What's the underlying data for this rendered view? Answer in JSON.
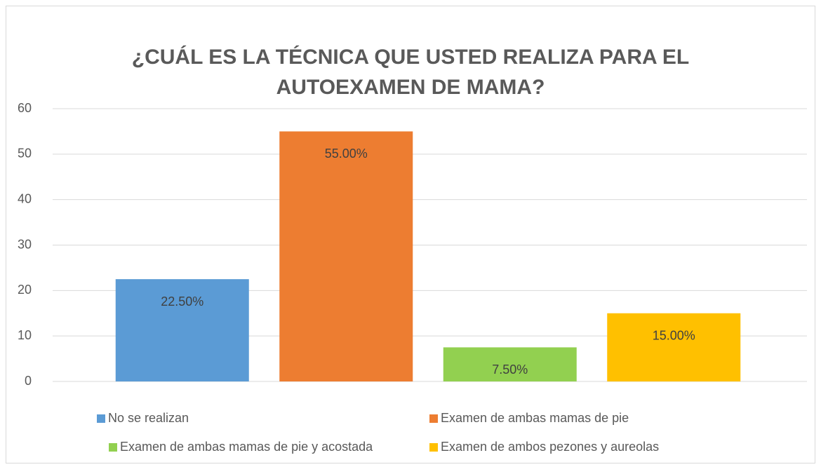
{
  "chart_data": {
    "type": "bar",
    "title": "¿CUÁL ES LA TÉCNICA QUE USTED REALIZA PARA EL AUTOEXAMEN DE MAMA?",
    "series": [
      {
        "name": "No se realizan",
        "color": "#5b9bd5",
        "values": [
          22.5
        ],
        "value_labels": [
          "22.50%"
        ]
      },
      {
        "name": "Examen de ambas mamas de pie",
        "color": "#ed7d31",
        "values": [
          55
        ],
        "value_labels": [
          "55.00%"
        ]
      },
      {
        "name": "Examen de ambas mamas de pie y acostada",
        "color": "#92d050",
        "values": [
          7.5
        ],
        "value_labels": [
          "7.50%"
        ]
      },
      {
        "name": "Examen de ambos pezones y aureolas",
        "color": "#ffc000",
        "values": [
          15
        ],
        "value_labels": [
          "15.00%"
        ]
      }
    ],
    "ylim": [
      0,
      60
    ],
    "yticks": [
      0,
      10,
      20,
      30,
      40,
      50,
      60
    ],
    "grid": true,
    "legend": "bottom"
  }
}
